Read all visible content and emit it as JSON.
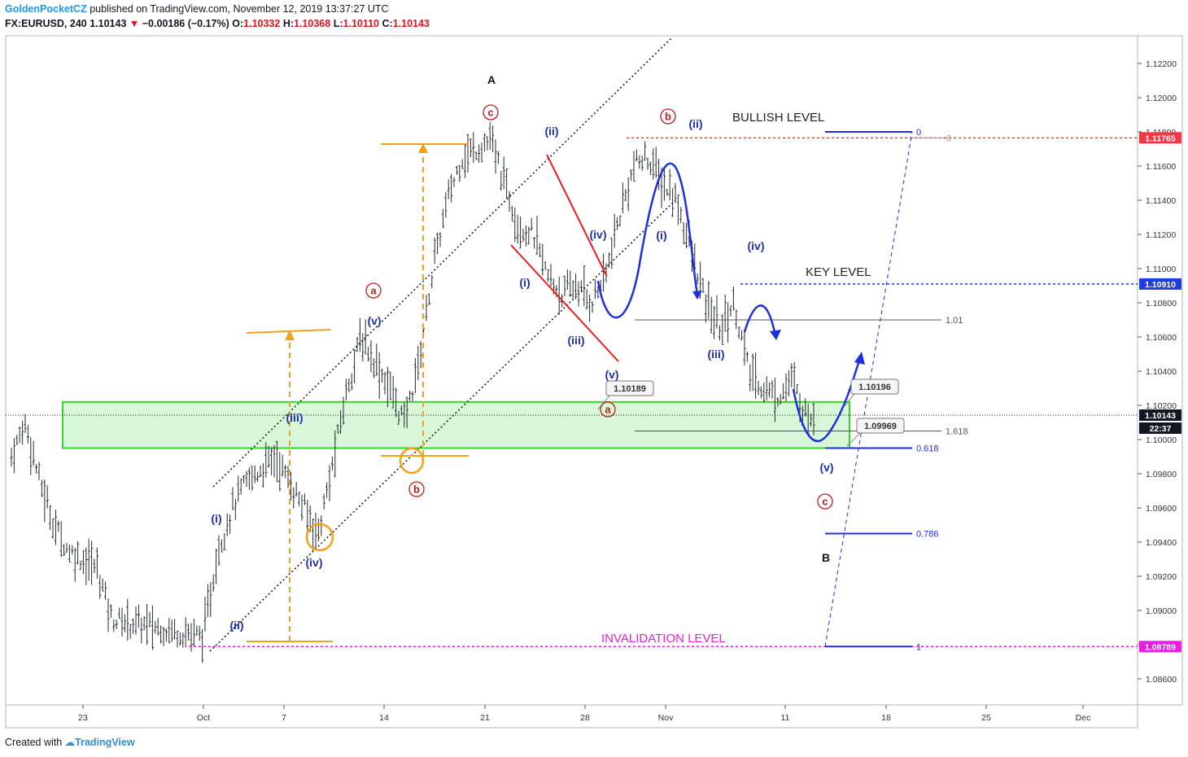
{
  "header": {
    "author": "GoldenPocketCZ",
    "published": "published on TradingView.com, November 12, 2019 13:37:27 UTC",
    "symbol": "FX:EURUSD, 240",
    "last": "1.10143",
    "change": "−0.00186 (−0.17%)",
    "o_label": "O:",
    "o_value": "1.10332",
    "h_label": "H:",
    "h_value": "1.10368",
    "l_label": "L:",
    "l_value": "1.10110",
    "c_label": "C:",
    "c_value": "1.10143"
  },
  "footer": {
    "created_with": "Created with",
    "brand": "TradingView"
  },
  "chart_data": {
    "type": "candlestick-ohlc",
    "symbol": "EURUSD",
    "timeframe": "240",
    "ylim": [
      1.085,
      1.1235
    ],
    "y_ticks": [
      "1.12200",
      "1.12000",
      "1.11800",
      "1.11600",
      "1.11400",
      "1.11200",
      "1.11000",
      "1.10800",
      "1.10600",
      "1.10400",
      "1.10200",
      "1.10000",
      "1.09800",
      "1.09600",
      "1.09400",
      "1.09200",
      "1.09000",
      "1.08800",
      "1.08600"
    ],
    "x_ticks": [
      "23",
      "Oct",
      "7",
      "14",
      "21",
      "28",
      "Nov",
      "11",
      "18",
      "25",
      "Dec"
    ],
    "price_path": [
      [
        "Sep 18",
        1.103
      ],
      [
        "Sep 19",
        1.1068
      ],
      [
        "Sep 20",
        1.104
      ],
      [
        "Sep 22",
        1.105
      ],
      [
        "Sep 23",
        1.099
      ],
      [
        "Sep 24",
        1.101
      ],
      [
        "Sep 25",
        1.0975
      ],
      [
        "Sep 26",
        1.095
      ],
      [
        "Sep 27",
        1.0935
      ],
      [
        "Sep 29",
        1.0925
      ],
      [
        "Sep 30",
        1.0895
      ],
      [
        "Oct 1",
        1.0885
      ],
      [
        "Oct 2",
        1.0935
      ],
      [
        "Oct 3",
        1.096
      ],
      [
        "Oct 4",
        1.0975
      ],
      [
        "Oct 6",
        1.099
      ],
      [
        "Oct 7",
        1.0975
      ],
      [
        "Oct 8",
        1.096
      ],
      [
        "Oct 9",
        1.0945
      ],
      [
        "Oct 10",
        1.0985
      ],
      [
        "Oct 11",
        1.103
      ],
      [
        "Oct 12",
        1.106
      ],
      [
        "Oct 13",
        1.1045
      ],
      [
        "Oct 14",
        1.103
      ],
      [
        "Oct 15",
        1.101
      ],
      [
        "Oct 16",
        1.1045
      ],
      [
        "Oct 17",
        1.11
      ],
      [
        "Oct 18",
        1.114
      ],
      [
        "Oct 19",
        1.1165
      ],
      [
        "Oct 21",
        1.1175
      ],
      [
        "Oct 22",
        1.115
      ],
      [
        "Oct 23",
        1.1125
      ],
      [
        "Oct 24",
        1.112
      ],
      [
        "Oct 25",
        1.1095
      ],
      [
        "Oct 26",
        1.1085
      ],
      [
        "Oct 27",
        1.109
      ],
      [
        "Oct 28",
        1.108
      ],
      [
        "Oct 29",
        1.1095
      ],
      [
        "Oct 30",
        1.113
      ],
      [
        "Oct 31",
        1.116
      ],
      [
        "Nov 1",
        1.1165
      ],
      [
        "Nov 2",
        1.115
      ],
      [
        "Nov 3",
        1.114
      ],
      [
        "Nov 4",
        1.111
      ],
      [
        "Nov 5",
        1.108
      ],
      [
        "Nov 6",
        1.1065
      ],
      [
        "Nov 7",
        1.108
      ],
      [
        "Nov 8",
        1.104
      ],
      [
        "Nov 9",
        1.103
      ],
      [
        "Nov 10",
        1.1025
      ],
      [
        "Nov 11",
        1.1035
      ],
      [
        "Nov 12",
        1.1014
      ]
    ],
    "price_labels": [
      {
        "value": 1.11765,
        "text": "1.11765",
        "color": "#f23645"
      },
      {
        "value": 1.1091,
        "text": "1.10910",
        "color": "#1e3de0"
      },
      {
        "value": 1.10143,
        "text": "1.10143",
        "color": "#131722"
      },
      {
        "value": 1.08789,
        "text": "1.08789",
        "color": "#e91ee4"
      }
    ],
    "countdown": "22:37",
    "levels": [
      {
        "name": "BULLISH LEVEL",
        "value": 1.11765,
        "color": "#f23645"
      },
      {
        "name": "KEY LEVEL",
        "value": 1.1091,
        "color": "#1e3de0"
      },
      {
        "name": "INVALIDATION LEVEL",
        "value": 1.08789,
        "color": "#e91ee4"
      }
    ],
    "support_zone": [
      1.0995,
      1.1022
    ],
    "fib_extension": [
      {
        "ratio": "1.01",
        "value": 1.107
      },
      {
        "ratio": "1.618",
        "value": 1.1005
      }
    ],
    "fib_retracement": [
      {
        "ratio": "0",
        "value": 1.118
      },
      {
        "ratio": "0",
        "value": 1.11765
      },
      {
        "ratio": "0.618",
        "value": 1.0995
      },
      {
        "ratio": "0.786",
        "value": 1.0945
      },
      {
        "ratio": "1",
        "value": 1.08789
      }
    ],
    "price_callouts": [
      "1.10189",
      "1.10196",
      "1.09969"
    ],
    "wave_labels": [
      {
        "text": "A",
        "color": "#131722"
      },
      {
        "text": "B",
        "color": "#131722"
      },
      {
        "text": "a",
        "color": "#c31b1b"
      },
      {
        "text": "b",
        "color": "#c31b1b"
      },
      {
        "text": "c",
        "color": "#c31b1b"
      },
      {
        "text": "(i)",
        "color": "#1e2fb0"
      },
      {
        "text": "(ii)",
        "color": "#1e2fb0"
      },
      {
        "text": "(iii)",
        "color": "#1e2fb0"
      },
      {
        "text": "(iv)",
        "color": "#1e2fb0"
      },
      {
        "text": "(v)",
        "color": "#1e2fb0"
      }
    ]
  }
}
